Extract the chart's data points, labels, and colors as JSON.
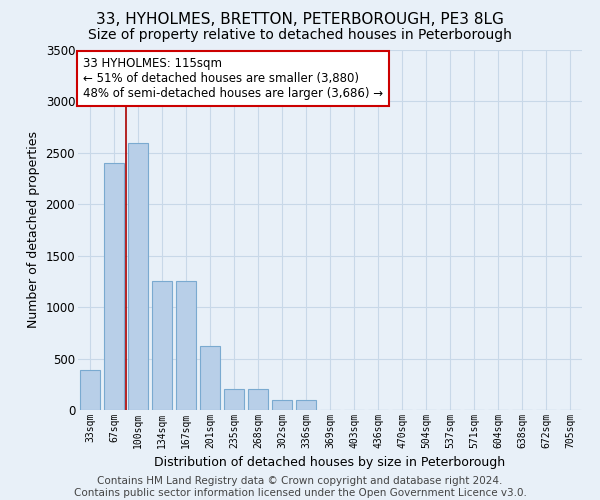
{
  "title1": "33, HYHOLMES, BRETTON, PETERBOROUGH, PE3 8LG",
  "title2": "Size of property relative to detached houses in Peterborough",
  "xlabel": "Distribution of detached houses by size in Peterborough",
  "ylabel": "Number of detached properties",
  "categories": [
    "33sqm",
    "67sqm",
    "100sqm",
    "134sqm",
    "167sqm",
    "201sqm",
    "235sqm",
    "268sqm",
    "302sqm",
    "336sqm",
    "369sqm",
    "403sqm",
    "436sqm",
    "470sqm",
    "504sqm",
    "537sqm",
    "571sqm",
    "604sqm",
    "638sqm",
    "672sqm",
    "705sqm"
  ],
  "values": [
    390,
    2400,
    2600,
    1250,
    1250,
    620,
    200,
    200,
    100,
    100,
    0,
    0,
    0,
    0,
    0,
    0,
    0,
    0,
    0,
    0,
    0
  ],
  "bar_color": "#b8cfe8",
  "bar_edge_color": "#7aaad0",
  "annotation_text": "33 HYHOLMES: 115sqm\n← 51% of detached houses are smaller (3,880)\n48% of semi-detached houses are larger (3,686) →",
  "annotation_box_color": "#ffffff",
  "annotation_box_edge_color": "#cc0000",
  "vline_x": 1.5,
  "vline_color": "#aa0000",
  "grid_color": "#c8d8e8",
  "bg_color": "#e8f0f8",
  "plot_bg_color": "#e8f0f8",
  "ylim": [
    0,
    3500
  ],
  "yticks": [
    0,
    500,
    1000,
    1500,
    2000,
    2500,
    3000,
    3500
  ],
  "footer": "Contains HM Land Registry data © Crown copyright and database right 2024.\nContains public sector information licensed under the Open Government Licence v3.0.",
  "title1_fontsize": 11,
  "title2_fontsize": 10,
  "xlabel_fontsize": 9,
  "ylabel_fontsize": 9,
  "annotation_fontsize": 8.5,
  "footer_fontsize": 7.5
}
